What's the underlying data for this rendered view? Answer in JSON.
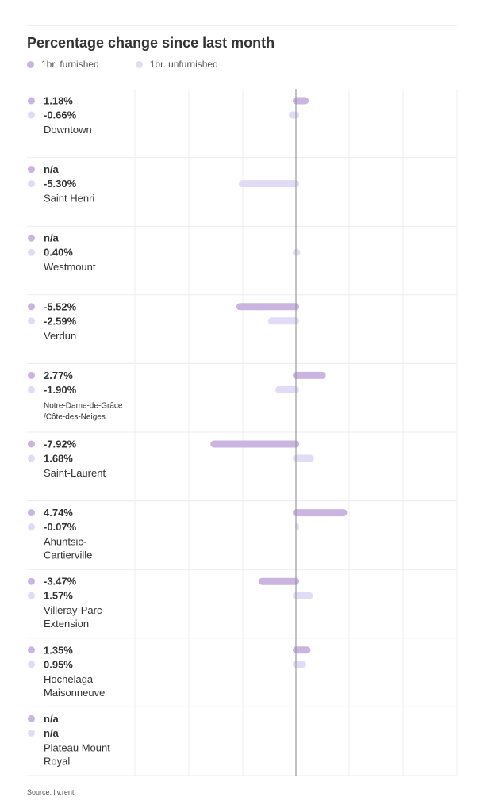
{
  "chart_data": {
    "type": "bar",
    "orientation": "horizontal",
    "title": "Percentage change since last month",
    "legend_position": "top-left",
    "series": [
      {
        "name": "1br. furnished",
        "color": "#c9b5e0"
      },
      {
        "name": "1br. unfurnished",
        "color": "#e2dbf6"
      }
    ],
    "categories": [
      {
        "name": [
          "Downtown"
        ],
        "values": [
          1.18,
          -0.66
        ],
        "labels": [
          "1.18%",
          "-0.66%"
        ]
      },
      {
        "name": [
          "Saint Henri"
        ],
        "values": [
          null,
          -5.3
        ],
        "labels": [
          "n/a",
          "-5.30%"
        ]
      },
      {
        "name": [
          "Westmount"
        ],
        "values": [
          null,
          0.4
        ],
        "labels": [
          "n/a",
          "0.40%"
        ]
      },
      {
        "name": [
          "Verdun"
        ],
        "values": [
          -5.52,
          -2.59
        ],
        "labels": [
          "-5.52%",
          "-2.59%"
        ]
      },
      {
        "name": [
          "Notre-Dame-de-Grâce",
          "/Côte-des-Neiges"
        ],
        "values": [
          2.77,
          -1.9
        ],
        "labels": [
          "2.77%",
          "-1.90%"
        ],
        "small": true
      },
      {
        "name": [
          "Saint-Laurent"
        ],
        "values": [
          -7.92,
          1.68
        ],
        "labels": [
          "-7.92%",
          "1.68%"
        ]
      },
      {
        "name": [
          "Ahuntsic-",
          "Cartierville"
        ],
        "values": [
          4.74,
          -0.07
        ],
        "labels": [
          "4.74%",
          "-0.07%"
        ]
      },
      {
        "name": [
          "Villeray-Parc-",
          "Extension"
        ],
        "values": [
          -3.47,
          1.57
        ],
        "labels": [
          "-3.47%",
          "1.57%"
        ]
      },
      {
        "name": [
          "Hochelaga-",
          "Maisonneuve"
        ],
        "values": [
          1.35,
          0.95
        ],
        "labels": [
          "1.35%",
          "0.95%"
        ]
      },
      {
        "name": [
          "Plateau Mount",
          "Royal"
        ],
        "values": [
          null,
          null
        ],
        "labels": [
          "n/a",
          "n/a"
        ]
      }
    ],
    "xlim": [
      -15,
      15
    ],
    "grid": true
  },
  "source": "Source: liv.rent"
}
